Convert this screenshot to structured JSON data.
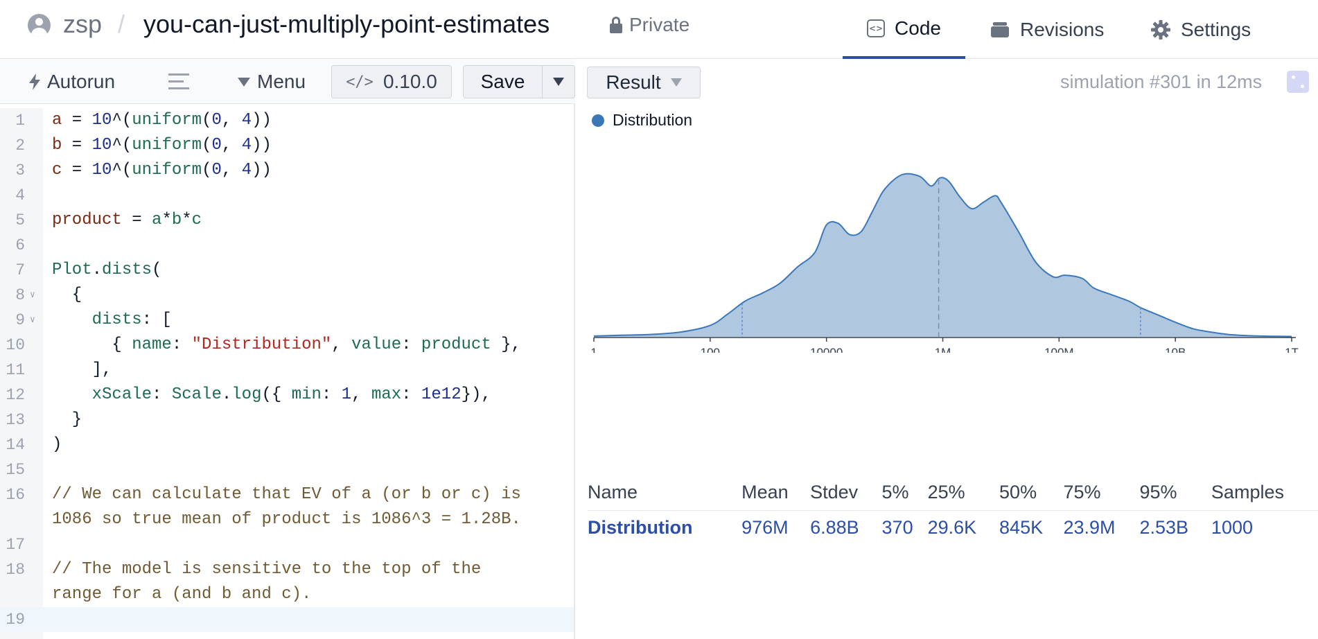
{
  "header": {
    "owner": "zsp",
    "separator": "/",
    "model": "you-can-just-multiply-point-estimates",
    "privacy": "Private",
    "tabs": [
      {
        "label": "Code",
        "icon": "code-icon",
        "active": true
      },
      {
        "label": "Revisions",
        "icon": "revisions-icon",
        "active": false
      },
      {
        "label": "Settings",
        "icon": "gear-icon",
        "active": false
      }
    ],
    "accent_color": "#2c4ea7"
  },
  "editor": {
    "toolbar": {
      "autorun": "Autorun",
      "menu": "Menu",
      "version": "0.10.0",
      "save": "Save"
    },
    "current_line": 19,
    "lines": [
      {
        "n": 1,
        "tokens": [
          [
            "var",
            "a"
          ],
          [
            "punc",
            " = "
          ],
          [
            "num",
            "10"
          ],
          [
            "punc",
            "^("
          ],
          [
            "fn",
            "uniform"
          ],
          [
            "punc",
            "("
          ],
          [
            "num",
            "0"
          ],
          [
            "punc",
            ", "
          ],
          [
            "num",
            "4"
          ],
          [
            "punc",
            "))"
          ]
        ]
      },
      {
        "n": 2,
        "tokens": [
          [
            "var",
            "b"
          ],
          [
            "punc",
            " = "
          ],
          [
            "num",
            "10"
          ],
          [
            "punc",
            "^("
          ],
          [
            "fn",
            "uniform"
          ],
          [
            "punc",
            "("
          ],
          [
            "num",
            "0"
          ],
          [
            "punc",
            ", "
          ],
          [
            "num",
            "4"
          ],
          [
            "punc",
            "))"
          ]
        ]
      },
      {
        "n": 3,
        "tokens": [
          [
            "var",
            "c"
          ],
          [
            "punc",
            " = "
          ],
          [
            "num",
            "10"
          ],
          [
            "punc",
            "^("
          ],
          [
            "fn",
            "uniform"
          ],
          [
            "punc",
            "("
          ],
          [
            "num",
            "0"
          ],
          [
            "punc",
            ", "
          ],
          [
            "num",
            "4"
          ],
          [
            "punc",
            "))"
          ]
        ]
      },
      {
        "n": 4,
        "tokens": []
      },
      {
        "n": 5,
        "tokens": [
          [
            "var",
            "product"
          ],
          [
            "punc",
            " = "
          ],
          [
            "fn",
            "a"
          ],
          [
            "punc",
            "*"
          ],
          [
            "fn",
            "b"
          ],
          [
            "punc",
            "*"
          ],
          [
            "fn",
            "c"
          ]
        ]
      },
      {
        "n": 6,
        "tokens": []
      },
      {
        "n": 7,
        "tokens": [
          [
            "fn",
            "Plot"
          ],
          [
            "punc",
            "."
          ],
          [
            "fn",
            "dists"
          ],
          [
            "punc",
            "("
          ]
        ]
      },
      {
        "n": 8,
        "fold": true,
        "tokens": [
          [
            "punc",
            "  {"
          ]
        ]
      },
      {
        "n": 9,
        "fold": true,
        "tokens": [
          [
            "punc",
            "    "
          ],
          [
            "prop",
            "dists"
          ],
          [
            "punc",
            ": ["
          ]
        ]
      },
      {
        "n": 10,
        "tokens": [
          [
            "punc",
            "      { "
          ],
          [
            "prop",
            "name"
          ],
          [
            "punc",
            ": "
          ],
          [
            "str",
            "\"Distribution\""
          ],
          [
            "punc",
            ", "
          ],
          [
            "prop",
            "value"
          ],
          [
            "punc",
            ": "
          ],
          [
            "fn",
            "product"
          ],
          [
            "punc",
            " },"
          ]
        ]
      },
      {
        "n": 11,
        "tokens": [
          [
            "punc",
            "    ],"
          ]
        ]
      },
      {
        "n": 12,
        "tokens": [
          [
            "punc",
            "    "
          ],
          [
            "prop",
            "xScale"
          ],
          [
            "punc",
            ": "
          ],
          [
            "fn",
            "Scale"
          ],
          [
            "punc",
            "."
          ],
          [
            "fn",
            "log"
          ],
          [
            "punc",
            "({ "
          ],
          [
            "prop",
            "min"
          ],
          [
            "punc",
            ": "
          ],
          [
            "num",
            "1"
          ],
          [
            "punc",
            ", "
          ],
          [
            "prop",
            "max"
          ],
          [
            "punc",
            ": "
          ],
          [
            "num",
            "1e12"
          ],
          [
            "punc",
            "}),"
          ]
        ]
      },
      {
        "n": 13,
        "tokens": [
          [
            "punc",
            "  }"
          ]
        ]
      },
      {
        "n": 14,
        "tokens": [
          [
            "punc",
            ")"
          ]
        ]
      },
      {
        "n": 15,
        "tokens": []
      },
      {
        "n": 16,
        "tokens": [
          [
            "cm",
            "// We can calculate that EV of a (or b or c) is"
          ]
        ]
      },
      {
        "n": null,
        "tokens": [
          [
            "cm",
            "1086 so true mean of product is 1086^3 = 1.28B."
          ]
        ]
      },
      {
        "n": 17,
        "tokens": []
      },
      {
        "n": 18,
        "tokens": [
          [
            "cm",
            "// The model is sensitive to the top of the"
          ]
        ]
      },
      {
        "n": null,
        "tokens": [
          [
            "cm",
            "range for a (and b and c)."
          ]
        ]
      },
      {
        "n": 19,
        "tokens": []
      }
    ]
  },
  "result": {
    "button": "Result",
    "status": "simulation #301 in 12ms",
    "legend": "Distribution",
    "chart_data": {
      "type": "area",
      "scale": "log",
      "xlim": [
        1,
        1000000000000
      ],
      "ticks": [
        {
          "label": "1",
          "value": 1
        },
        {
          "label": "100",
          "value": 100
        },
        {
          "label": "10000",
          "value": 10000
        },
        {
          "label": "1M",
          "value": 1000000
        },
        {
          "label": "100M",
          "value": 100000000
        },
        {
          "label": "10B",
          "value": 10000000000
        },
        {
          "label": "1T",
          "value": 1000000000000
        }
      ],
      "series": [
        {
          "name": "Distribution",
          "color": "#3b78b8",
          "fill": "#b0c7e0",
          "log10_x": [
            0,
            0.5,
            1,
            1.5,
            2,
            2.3,
            2.6,
            2.9,
            3.2,
            3.5,
            3.8,
            4.0,
            4.2,
            4.4,
            4.6,
            4.8,
            5.0,
            5.3,
            5.6,
            5.8,
            5.95,
            6.1,
            6.3,
            6.5,
            6.7,
            6.9,
            7.0,
            7.3,
            7.6,
            7.9,
            8.1,
            8.4,
            8.6,
            8.9,
            9.2,
            9.4,
            9.6,
            9.8,
            10.0,
            10.3,
            10.6,
            10.9,
            11.2,
            11.6,
            12
          ],
          "density": [
            0.005,
            0.01,
            0.015,
            0.03,
            0.07,
            0.14,
            0.22,
            0.27,
            0.33,
            0.43,
            0.52,
            0.69,
            0.7,
            0.63,
            0.65,
            0.78,
            0.91,
            1.0,
            0.99,
            0.93,
            0.98,
            0.96,
            0.86,
            0.79,
            0.83,
            0.87,
            0.83,
            0.65,
            0.46,
            0.37,
            0.38,
            0.36,
            0.3,
            0.26,
            0.22,
            0.18,
            0.15,
            0.12,
            0.09,
            0.05,
            0.03,
            0.015,
            0.008,
            0.004,
            0.002
          ],
          "markers_log10": [
            2.55,
            5.93,
            9.4
          ]
        }
      ]
    },
    "table": {
      "headers": [
        "Name",
        "Mean",
        "Stdev",
        "5%",
        "25%",
        "50%",
        "75%",
        "95%",
        "Samples"
      ],
      "rows": [
        [
          "Distribution",
          "976M",
          "6.88B",
          "370",
          "29.6K",
          "845K",
          "23.9M",
          "2.53B",
          "1000"
        ]
      ]
    }
  }
}
